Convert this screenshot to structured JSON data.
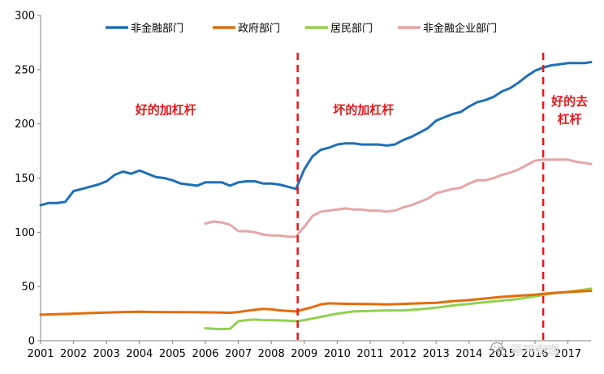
{
  "chart_data": {
    "type": "line",
    "title": "",
    "xlabel": "",
    "ylabel": "",
    "ylim": [
      0,
      300
    ],
    "xlim": [
      2001,
      2017.7
    ],
    "yticks": [
      0,
      50,
      100,
      150,
      200,
      250,
      300
    ],
    "xticks": [
      "2001",
      "2002",
      "2003",
      "2004",
      "2005",
      "2006",
      "2007",
      "2008",
      "2009",
      "2010",
      "2011",
      "2012",
      "2013",
      "2014",
      "2015",
      "2016",
      "2017"
    ],
    "grid": false,
    "legend_position": "top",
    "series": [
      {
        "name": "非金融部门",
        "color": "#1f6fb5",
        "points": [
          [
            2001.0,
            125
          ],
          [
            2001.25,
            127
          ],
          [
            2001.5,
            127
          ],
          [
            2001.75,
            128
          ],
          [
            2002.0,
            138
          ],
          [
            2002.25,
            140
          ],
          [
            2002.5,
            142
          ],
          [
            2002.75,
            144
          ],
          [
            2003.0,
            147
          ],
          [
            2003.25,
            153
          ],
          [
            2003.5,
            156
          ],
          [
            2003.75,
            154
          ],
          [
            2004.0,
            157
          ],
          [
            2004.25,
            154
          ],
          [
            2004.5,
            151
          ],
          [
            2004.75,
            150
          ],
          [
            2005.0,
            148
          ],
          [
            2005.25,
            145
          ],
          [
            2005.5,
            144
          ],
          [
            2005.75,
            143
          ],
          [
            2006.0,
            146
          ],
          [
            2006.25,
            146
          ],
          [
            2006.5,
            146
          ],
          [
            2006.75,
            143
          ],
          [
            2007.0,
            146
          ],
          [
            2007.25,
            147
          ],
          [
            2007.5,
            147
          ],
          [
            2007.75,
            145
          ],
          [
            2008.0,
            145
          ],
          [
            2008.25,
            144
          ],
          [
            2008.5,
            142
          ],
          [
            2008.75,
            140
          ],
          [
            2009.0,
            158
          ],
          [
            2009.25,
            170
          ],
          [
            2009.5,
            176
          ],
          [
            2009.75,
            178
          ],
          [
            2010.0,
            181
          ],
          [
            2010.25,
            182
          ],
          [
            2010.5,
            182
          ],
          [
            2010.75,
            181
          ],
          [
            2011.0,
            181
          ],
          [
            2011.25,
            181
          ],
          [
            2011.5,
            180
          ],
          [
            2011.75,
            181
          ],
          [
            2012.0,
            185
          ],
          [
            2012.25,
            188
          ],
          [
            2012.5,
            192
          ],
          [
            2012.75,
            196
          ],
          [
            2013.0,
            203
          ],
          [
            2013.25,
            206
          ],
          [
            2013.5,
            209
          ],
          [
            2013.75,
            211
          ],
          [
            2014.0,
            216
          ],
          [
            2014.25,
            220
          ],
          [
            2014.5,
            222
          ],
          [
            2014.75,
            225
          ],
          [
            2015.0,
            230
          ],
          [
            2015.25,
            233
          ],
          [
            2015.5,
            238
          ],
          [
            2015.75,
            244
          ],
          [
            2016.0,
            249
          ],
          [
            2016.25,
            252
          ],
          [
            2016.5,
            254
          ],
          [
            2016.75,
            255
          ],
          [
            2017.0,
            256
          ],
          [
            2017.25,
            256
          ],
          [
            2017.5,
            256
          ],
          [
            2017.7,
            257
          ]
        ]
      },
      {
        "name": "政府部门",
        "color": "#e36c0a",
        "points": [
          [
            2001.0,
            24
          ],
          [
            2001.5,
            24.5
          ],
          [
            2002.0,
            25
          ],
          [
            2002.5,
            25.5
          ],
          [
            2003.0,
            26
          ],
          [
            2003.5,
            26.5
          ],
          [
            2004.0,
            26.8
          ],
          [
            2004.5,
            26.5
          ],
          [
            2005.0,
            26.3
          ],
          [
            2005.5,
            26.3
          ],
          [
            2006.0,
            26.2
          ],
          [
            2006.5,
            26
          ],
          [
            2006.75,
            25.8
          ],
          [
            2007.0,
            26.5
          ],
          [
            2007.25,
            27.5
          ],
          [
            2007.5,
            28.5
          ],
          [
            2007.75,
            29.3
          ],
          [
            2008.0,
            29
          ],
          [
            2008.25,
            28
          ],
          [
            2008.5,
            27.5
          ],
          [
            2008.75,
            27
          ],
          [
            2009.0,
            29
          ],
          [
            2009.25,
            31
          ],
          [
            2009.5,
            33.5
          ],
          [
            2009.75,
            34.5
          ],
          [
            2010.0,
            34.3
          ],
          [
            2010.5,
            34
          ],
          [
            2011.0,
            33.8
          ],
          [
            2011.5,
            33.5
          ],
          [
            2012.0,
            34
          ],
          [
            2012.5,
            34.5
          ],
          [
            2013.0,
            35
          ],
          [
            2013.5,
            36.5
          ],
          [
            2014.0,
            37.5
          ],
          [
            2014.5,
            39
          ],
          [
            2015.0,
            40.5
          ],
          [
            2015.5,
            41.5
          ],
          [
            2016.0,
            42.5
          ],
          [
            2016.5,
            44
          ],
          [
            2017.0,
            45
          ],
          [
            2017.7,
            46
          ]
        ]
      },
      {
        "name": "居民部门",
        "color": "#92d050",
        "points": [
          [
            2006.0,
            11.5
          ],
          [
            2006.25,
            11
          ],
          [
            2006.5,
            10.8
          ],
          [
            2006.75,
            11
          ],
          [
            2007.0,
            18
          ],
          [
            2007.25,
            19
          ],
          [
            2007.5,
            19.5
          ],
          [
            2007.75,
            19
          ],
          [
            2008.0,
            19
          ],
          [
            2008.5,
            18.5
          ],
          [
            2008.75,
            18
          ],
          [
            2009.0,
            19
          ],
          [
            2009.5,
            22
          ],
          [
            2010.0,
            25
          ],
          [
            2010.5,
            27
          ],
          [
            2011.0,
            27.5
          ],
          [
            2011.5,
            28
          ],
          [
            2012.0,
            28
          ],
          [
            2012.5,
            29
          ],
          [
            2013.0,
            30.5
          ],
          [
            2013.5,
            32.5
          ],
          [
            2014.0,
            34
          ],
          [
            2014.5,
            35.5
          ],
          [
            2015.0,
            37
          ],
          [
            2015.5,
            38.5
          ],
          [
            2016.0,
            41
          ],
          [
            2016.5,
            43.5
          ],
          [
            2017.0,
            45
          ],
          [
            2017.7,
            48
          ]
        ]
      },
      {
        "name": "非金融企业部门",
        "color": "#e6a6a6",
        "points": [
          [
            2006.0,
            108
          ],
          [
            2006.25,
            110
          ],
          [
            2006.5,
            109
          ],
          [
            2006.75,
            107
          ],
          [
            2007.0,
            101
          ],
          [
            2007.25,
            101
          ],
          [
            2007.5,
            100
          ],
          [
            2007.75,
            98
          ],
          [
            2008.0,
            97
          ],
          [
            2008.25,
            97
          ],
          [
            2008.5,
            96
          ],
          [
            2008.75,
            96
          ],
          [
            2009.0,
            105
          ],
          [
            2009.25,
            115
          ],
          [
            2009.5,
            119
          ],
          [
            2009.75,
            120
          ],
          [
            2010.0,
            121
          ],
          [
            2010.25,
            122
          ],
          [
            2010.5,
            121
          ],
          [
            2010.75,
            121
          ],
          [
            2011.0,
            120
          ],
          [
            2011.25,
            120
          ],
          [
            2011.5,
            119
          ],
          [
            2011.75,
            120
          ],
          [
            2012.0,
            123
          ],
          [
            2012.25,
            125
          ],
          [
            2012.5,
            128
          ],
          [
            2012.75,
            131
          ],
          [
            2013.0,
            136
          ],
          [
            2013.25,
            138
          ],
          [
            2013.5,
            140
          ],
          [
            2013.75,
            141
          ],
          [
            2014.0,
            145
          ],
          [
            2014.25,
            148
          ],
          [
            2014.5,
            148
          ],
          [
            2014.75,
            150
          ],
          [
            2015.0,
            153
          ],
          [
            2015.25,
            155
          ],
          [
            2015.5,
            158
          ],
          [
            2015.75,
            162
          ],
          [
            2016.0,
            166
          ],
          [
            2016.25,
            167
          ],
          [
            2016.5,
            167
          ],
          [
            2016.75,
            167
          ],
          [
            2017.0,
            167
          ],
          [
            2017.25,
            165
          ],
          [
            2017.5,
            164
          ],
          [
            2017.7,
            163
          ]
        ]
      }
    ],
    "reference_lines": [
      {
        "x": 2008.8,
        "color": "#e8171a"
      },
      {
        "x": 2016.25,
        "color": "#e8171a"
      }
    ],
    "annotations": [
      {
        "id": "good-leverage",
        "lines": [
          "好的加杠杆"
        ],
        "x": 2004.8,
        "y": 209
      },
      {
        "id": "bad-leverage",
        "lines": [
          "坏的加杠杆"
        ],
        "x": 2010.8,
        "y": 209
      },
      {
        "id": "good-deleverage",
        "lines": [
          "好的去",
          "杠杆"
        ],
        "x": 2017.05,
        "y": 217
      }
    ]
  },
  "watermark": {
    "text": "泽平宏观",
    "icon": "wechat-icon"
  }
}
